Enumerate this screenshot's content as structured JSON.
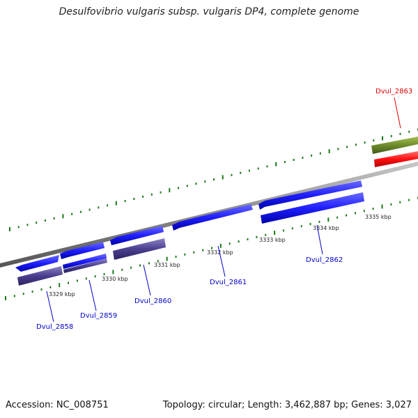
{
  "title": "Desulfovibrio vulgaris subsp. vulgaris DP4, complete genome",
  "footer": {
    "accession": "Accession: NC_008751",
    "summary": "Topology: circular; Length: 3,462,887 bp; Genes: 3,027"
  },
  "ticks": [
    {
      "label": "3329 kbp"
    },
    {
      "label": "3330 kbp"
    },
    {
      "label": "3331 kbp"
    },
    {
      "label": "3332 kbp"
    },
    {
      "label": "3333 kbp"
    },
    {
      "label": "3334 kbp"
    },
    {
      "label": "3335 kbp"
    }
  ],
  "genes": [
    {
      "label": "Dvul_2858",
      "color": "#0000cc"
    },
    {
      "label": "Dvul_2859",
      "color": "#0000cc"
    },
    {
      "label": "Dvul_2860",
      "color": "#0000cc"
    },
    {
      "label": "Dvul_2861",
      "color": "#0000cc"
    },
    {
      "label": "Dvul_2862",
      "color": "#0000cc"
    },
    {
      "label": "Dvul_2863",
      "color": "#dd0000"
    }
  ],
  "colors": {
    "cds_blue": "#1f1fff",
    "cds_dark": "#4a3f8f",
    "cds_red": "#ff1010",
    "cds_olive": "#6e8c2a",
    "backbone": "#8a8a8a",
    "dots": "#1a7a1a"
  }
}
